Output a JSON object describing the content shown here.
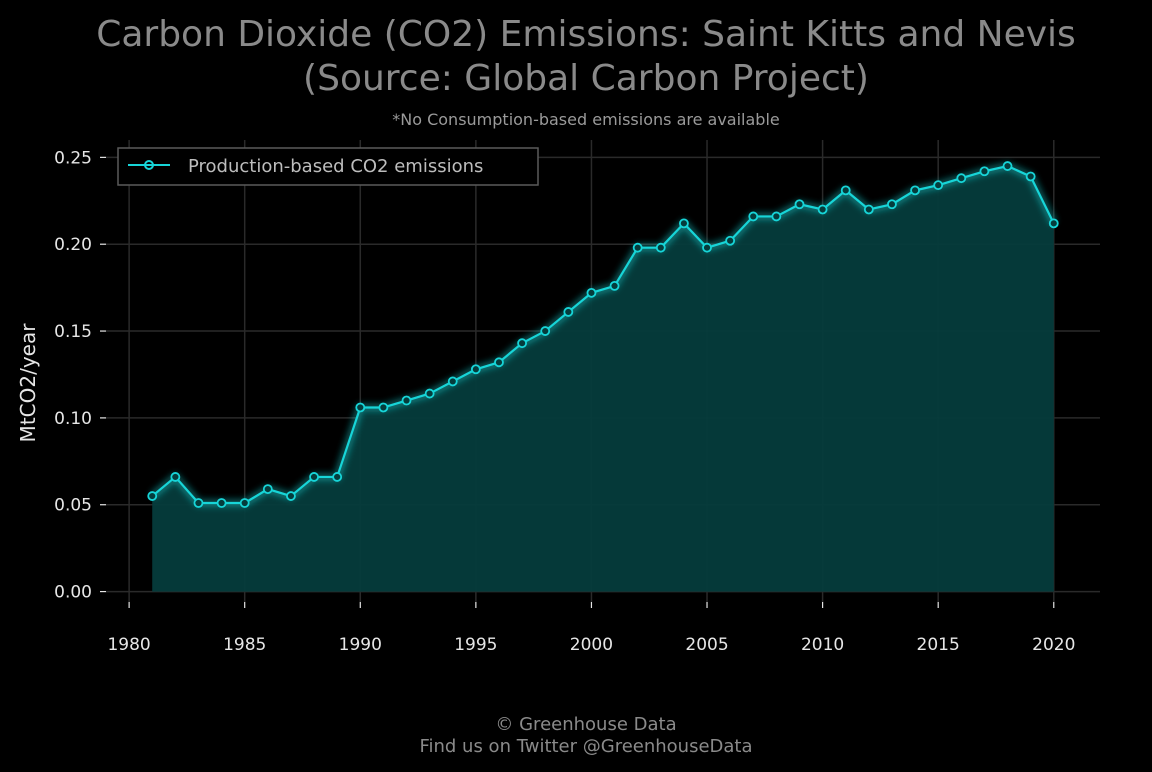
{
  "colors": {
    "background": "#000000",
    "line": "#17d5d8",
    "fill": "#053c3c",
    "grid": "#2a2a2a",
    "title": "#8a8a8a",
    "tick": "#e6e6e6"
  },
  "footer": {
    "line1": "© Greenhouse Data",
    "line2": "Find us on Twitter @GreenhouseData"
  },
  "chart_data": {
    "type": "area",
    "title_line1": "Carbon Dioxide (CO2) Emissions: Saint Kitts and Nevis",
    "title_line2": "(Source: Global Carbon Project)",
    "subtitle": "*No Consumption-based emissions are available",
    "ylabel": "MtCO2/year",
    "xlabel": "",
    "xlim": [
      1979,
      2022
    ],
    "ylim": [
      -0.006,
      0.26
    ],
    "x_ticks": [
      1980,
      1985,
      1990,
      1995,
      2000,
      2005,
      2010,
      2015,
      2020
    ],
    "y_ticks": [
      0.0,
      0.05,
      0.1,
      0.15,
      0.2,
      0.25
    ],
    "y_tick_labels": [
      "0.00",
      "0.05",
      "0.10",
      "0.15",
      "0.20",
      "0.25"
    ],
    "grid": true,
    "legend_position": "top-left",
    "series": [
      {
        "name": "Production-based CO2 emissions",
        "x": [
          1981,
          1982,
          1983,
          1984,
          1985,
          1986,
          1987,
          1988,
          1989,
          1990,
          1991,
          1992,
          1993,
          1994,
          1995,
          1996,
          1997,
          1998,
          1999,
          2000,
          2001,
          2002,
          2003,
          2004,
          2005,
          2006,
          2007,
          2008,
          2009,
          2010,
          2011,
          2012,
          2013,
          2014,
          2015,
          2016,
          2017,
          2018,
          2019,
          2020
        ],
        "values": [
          0.055,
          0.066,
          0.051,
          0.051,
          0.051,
          0.059,
          0.055,
          0.066,
          0.066,
          0.106,
          0.106,
          0.11,
          0.114,
          0.121,
          0.128,
          0.132,
          0.143,
          0.15,
          0.161,
          0.172,
          0.176,
          0.198,
          0.198,
          0.212,
          0.198,
          0.202,
          0.216,
          0.216,
          0.223,
          0.22,
          0.231,
          0.22,
          0.223,
          0.231,
          0.234,
          0.238,
          0.242,
          0.245,
          0.239,
          0.212
        ]
      }
    ]
  }
}
